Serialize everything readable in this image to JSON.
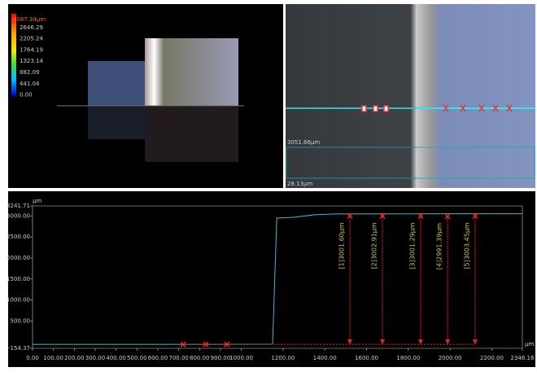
{
  "color_scale": {
    "labels": [
      "3087.34μm",
      "2646.29",
      "2205.24",
      "1764.19",
      "1323.14",
      "882.09",
      "441.04",
      "0.00"
    ]
  },
  "image_labels": {
    "width": "3051.66μm",
    "height": "28.13μm"
  },
  "chart_data": {
    "type": "line",
    "y_unit": "μm",
    "x_unit": "μm",
    "x": [
      0,
      400,
      800,
      1150,
      1160,
      1170,
      1250,
      1350,
      1450,
      1600,
      2000,
      2346.16
    ],
    "series": [
      {
        "color": "#4fb3c8",
        "values": [
          -60,
          -60,
          -60,
          -55,
          1500,
          2950,
          2970,
          3030,
          3050,
          3050,
          3055,
          3055
        ]
      }
    ],
    "xlim": [
      0,
      2346.16
    ],
    "ylim": [
      -154.37,
      3241.71
    ],
    "xticks": [
      {
        "value": 0,
        "label": "0.00"
      },
      {
        "value": 100,
        "label": "100.00"
      },
      {
        "value": 200,
        "label": "200.00"
      },
      {
        "value": 300,
        "label": "300.00"
      },
      {
        "value": 400,
        "label": "400.00"
      },
      {
        "value": 500,
        "label": "500.00"
      },
      {
        "value": 600,
        "label": "600.00"
      },
      {
        "value": 700,
        "label": "700.00"
      },
      {
        "value": 800,
        "label": "800.00"
      },
      {
        "value": 900,
        "label": "900.00"
      },
      {
        "value": 1000,
        "label": "1000.00"
      },
      {
        "value": 1200,
        "label": "1200.00"
      },
      {
        "value": 1400,
        "label": "1400.00"
      },
      {
        "value": 1600,
        "label": "1600.00"
      },
      {
        "value": 1800,
        "label": "1800.00"
      },
      {
        "value": 2000,
        "label": "2000.00"
      },
      {
        "value": 2200,
        "label": "2200.00"
      },
      2346.16
    ],
    "yticks": [
      -154.37,
      {
        "value": 500,
        "label": "500.00"
      },
      {
        "value": 1000,
        "label": "1000.00"
      },
      {
        "value": 1500,
        "label": "1500.00"
      },
      {
        "value": 2000,
        "label": "2000.00"
      },
      {
        "value": 2500,
        "label": "2500.00"
      },
      {
        "value": 3000,
        "label": "3000.00"
      },
      3241.71
    ],
    "base_markers_x": [
      721,
      830,
      931
    ],
    "measurements": [
      {
        "x": 1520,
        "value": 3001.6,
        "label": "[1]3001.60μm"
      },
      {
        "x": 1676,
        "value": 3002.91,
        "label": "[2]3002.91μm"
      },
      {
        "x": 1859,
        "value": 3001.29,
        "label": "[3]3001.29μm"
      },
      {
        "x": 1988,
        "value": 2991.39,
        "label": "[4]2991.39μm"
      },
      {
        "x": 2120,
        "value": 3003.45,
        "label": "[5]3003.45μm"
      }
    ]
  }
}
